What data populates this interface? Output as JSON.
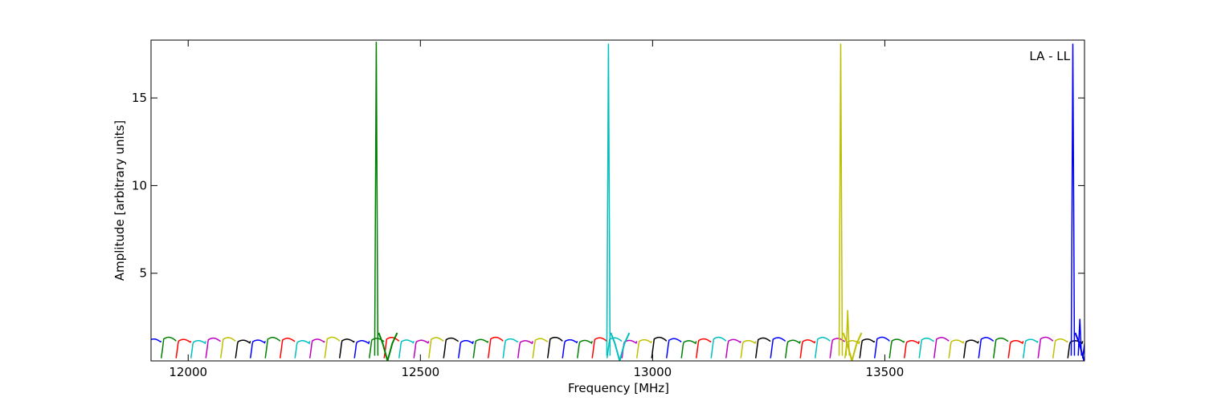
{
  "chart_data": {
    "type": "line",
    "title": "",
    "xlabel": "Frequency [MHz]",
    "ylabel": "Amplitude [arbitrary units]",
    "annotation": "LA - LL",
    "xlim": [
      11920,
      13930
    ],
    "ylim": [
      0,
      18.3
    ],
    "xticks": [
      12000,
      12500,
      13000,
      13500
    ],
    "yticks": [
      5,
      10,
      15
    ],
    "xtick_labels": [
      "12000",
      "12500",
      "13000",
      "13500"
    ],
    "ytick_labels": [
      "5",
      "10",
      "15"
    ],
    "grid": false,
    "legend": "none",
    "colors": [
      "#0000ff",
      "#008000",
      "#ff0000",
      "#00bfbf",
      "#bf00bf",
      "#bfbf00",
      "#000000",
      "#bfbfbf"
    ],
    "baseline": {
      "channel_width_mhz": 32,
      "peak_amplitude": 1.25,
      "notch_width_mhz": 5
    },
    "spikes": [
      {
        "x": 12405,
        "y": 18.2,
        "color": "#008000"
      },
      {
        "x": 12905,
        "y": 18.1,
        "color": "#00bfbf"
      },
      {
        "x": 13405,
        "y": 18.1,
        "color": "#bfbf00"
      },
      {
        "x": 13420,
        "y": 2.9,
        "color": "#bfbf00"
      },
      {
        "x": 13905,
        "y": 18.1,
        "color": "#0000ff"
      },
      {
        "x": 13920,
        "y": 2.4,
        "color": "#0000ff"
      }
    ]
  }
}
